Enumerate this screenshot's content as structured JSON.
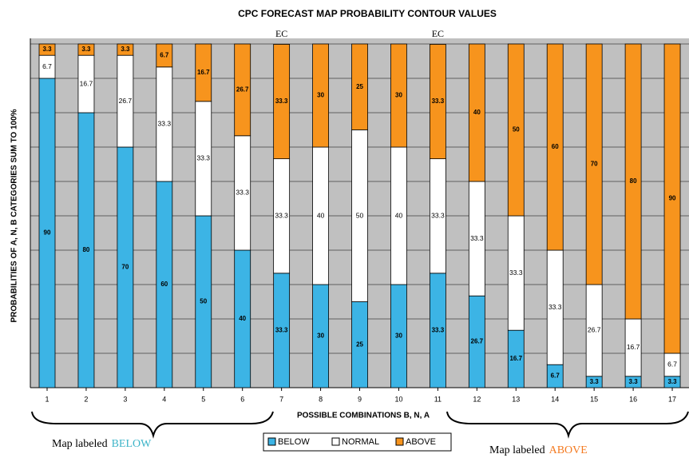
{
  "chart_data": {
    "type": "stacked-bar",
    "title": "CPC FORECAST MAP PROBABILITY CONTOUR VALUES",
    "x_label": "POSSIBLE COMBINATIONS B, N, A",
    "y_label": "PROBABILITIES OF A, N, B CATEGORIES SUM TO 100%",
    "categories": [
      "1",
      "2",
      "3",
      "4",
      "5",
      "6",
      "7",
      "8",
      "9",
      "10",
      "11",
      "12",
      "13",
      "14",
      "15",
      "16",
      "17"
    ],
    "series": [
      {
        "name": "BELOW",
        "color": "#3cb4e5",
        "values": [
          90,
          80,
          70,
          60,
          50,
          40,
          33.3,
          30,
          25,
          30,
          33.3,
          26.7,
          16.7,
          6.7,
          3.3,
          3.3,
          3.3
        ]
      },
      {
        "name": "NORMAL",
        "color": "#ffffff",
        "values": [
          6.7,
          16.7,
          26.7,
          33.3,
          33.3,
          33.3,
          33.3,
          40,
          50,
          40,
          33.3,
          33.3,
          33.3,
          33.3,
          26.7,
          16.7,
          6.7
        ]
      },
      {
        "name": "ABOVE",
        "color": "#f7941d",
        "values": [
          3.3,
          3.3,
          3.3,
          6.7,
          16.7,
          26.7,
          33.3,
          30,
          25,
          30,
          33.3,
          40,
          50,
          60,
          70,
          80,
          90
        ]
      }
    ],
    "ylim": [
      0,
      100
    ],
    "yticks": [
      0,
      10,
      20,
      30,
      40,
      50,
      60,
      70,
      80,
      90,
      100
    ],
    "grid": true,
    "annotations": [
      "EC",
      "EC"
    ],
    "notes": [
      {
        "text": "Map labeled",
        "highlight": "BELOW",
        "color": "#3cb4c8"
      },
      {
        "text": "Map labeled",
        "highlight": "ABOVE",
        "color": "#f47a20"
      }
    ]
  }
}
